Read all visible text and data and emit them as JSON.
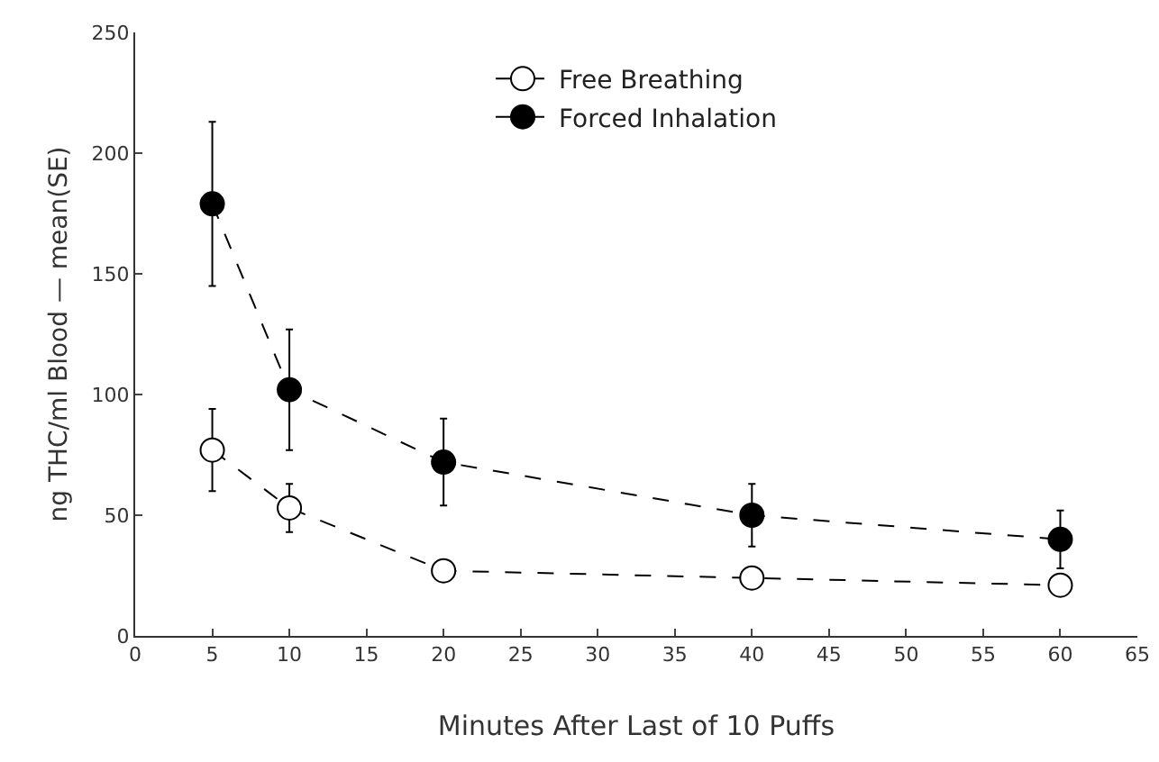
{
  "chart_data": {
    "type": "line",
    "xlabel": "Minutes After Last of 10 Puffs",
    "ylabel": "ng THC/ml Blood — mean(SE)",
    "x": [
      5,
      10,
      20,
      40,
      60
    ],
    "series": [
      {
        "name": "Free Breathing",
        "color": "#000000",
        "marker": "circle",
        "values": [
          77,
          53,
          27,
          24,
          21
        ],
        "errors": [
          17,
          10,
          null,
          null,
          null
        ]
      },
      {
        "name": "Forced Inhalation",
        "color": "#000000",
        "marker": "circle",
        "values": [
          179,
          102,
          72,
          50,
          40
        ],
        "errors": [
          34,
          25,
          18,
          13,
          12
        ]
      }
    ],
    "xlim": [
      0,
      65
    ],
    "xticks": [
      0,
      5,
      10,
      15,
      20,
      25,
      30,
      35,
      40,
      45,
      50,
      55,
      60,
      65
    ],
    "ylim": [
      0,
      250
    ],
    "yticks": [
      0,
      50,
      100,
      150,
      200,
      250
    ],
    "grid": false,
    "legend": "top",
    "line_style": "dashed"
  }
}
